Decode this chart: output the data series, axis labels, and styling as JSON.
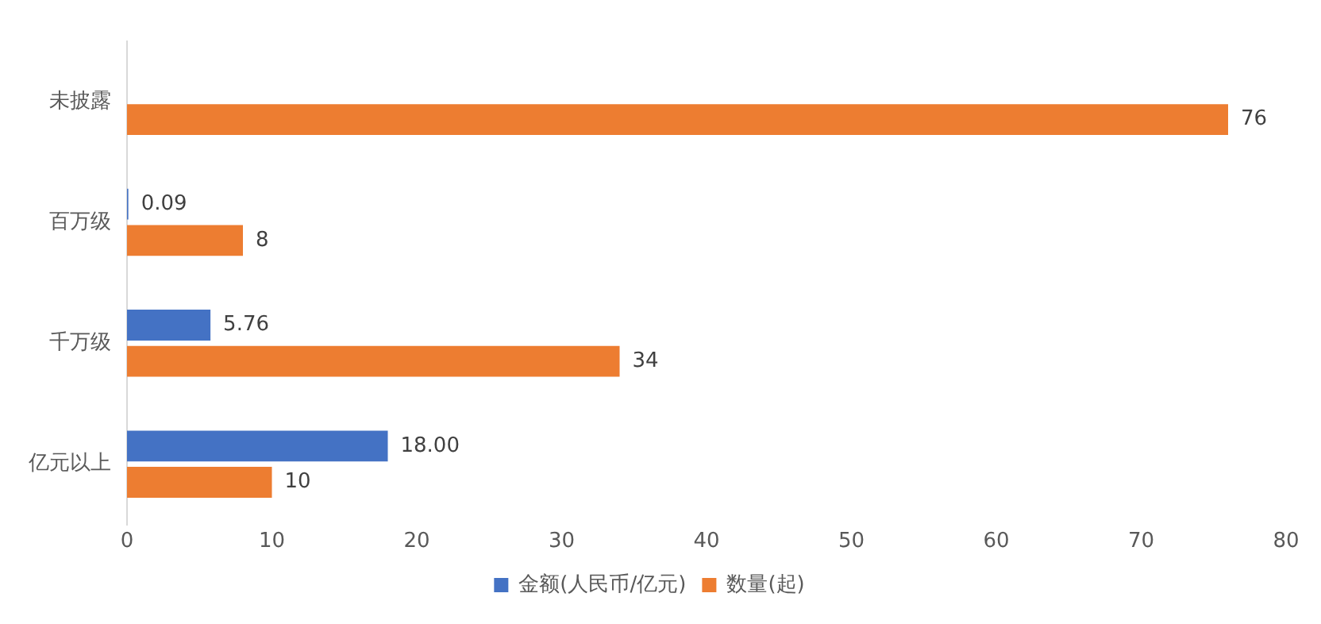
{
  "chart_data": {
    "type": "bar",
    "orientation": "horizontal",
    "categories": [
      "未披露",
      "百万级",
      "千万级",
      "亿元以上"
    ],
    "series": [
      {
        "name": "金额(人民币/亿元)",
        "color": "#4472c4",
        "values": [
          null,
          0.09,
          5.76,
          18.0
        ],
        "value_labels": [
          null,
          "0.09",
          "5.76",
          "18.00"
        ]
      },
      {
        "name": "数量(起)",
        "color": "#ed7d31",
        "values": [
          76,
          8,
          34,
          10
        ],
        "value_labels": [
          "76",
          "8",
          "34",
          "10"
        ]
      }
    ],
    "xlim": [
      0,
      80
    ],
    "xticks": [
      0,
      10,
      20,
      30,
      40,
      50,
      60,
      70,
      80
    ],
    "grid": false,
    "legend": "bottom"
  }
}
